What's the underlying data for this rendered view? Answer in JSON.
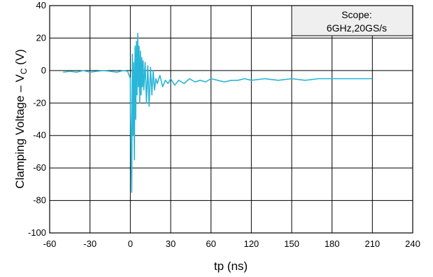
{
  "chart_data": {
    "type": "line",
    "xlabel": "tp (ns)",
    "ylabel": {
      "main": "Clamping Voltage – V",
      "sub": "C",
      "unit": " (V)"
    },
    "x_ticks": [
      "-60",
      "-30",
      "0",
      "30",
      "60",
      "120",
      "150",
      "180",
      "210",
      "240"
    ],
    "y_ticks": [
      40,
      20,
      0,
      -20,
      -40,
      -60,
      -80,
      -100
    ],
    "ylim": [
      -100,
      40
    ],
    "grid": true,
    "annotation": [
      "Scope:",
      "6GHz,20GS/s"
    ],
    "line_color": "#29b6d8",
    "series": [
      {
        "x": [
          -50,
          -45,
          -40,
          -35,
          -30,
          -25,
          -20,
          -15,
          -10,
          -5,
          -2,
          0,
          0.5,
          1,
          1.5,
          2,
          2.5,
          3,
          3.5,
          4,
          4.5,
          5,
          5.5,
          6,
          6.5,
          7,
          7.5,
          8,
          8.5,
          9,
          9.5,
          10,
          11,
          12,
          13,
          14,
          15,
          16,
          17,
          18,
          19,
          20,
          22,
          24,
          26,
          28,
          30,
          33,
          36,
          40,
          44,
          48,
          52,
          56,
          60,
          70,
          80,
          90,
          100,
          110,
          120,
          130,
          140,
          150,
          160,
          170,
          180,
          190,
          200,
          210
        ],
        "y": [
          -1,
          -0.5,
          -1,
          0,
          -1,
          -0.5,
          0,
          -0.5,
          -1,
          0,
          -0.5,
          -5,
          -45,
          -75,
          10,
          -40,
          5,
          -55,
          15,
          -30,
          18,
          -15,
          23,
          -10,
          15,
          -20,
          12,
          -15,
          8,
          -10,
          6,
          -12,
          5,
          -20,
          3,
          -22,
          2,
          -15,
          0,
          -12,
          -5,
          -8,
          -3,
          -10,
          -6,
          -8,
          -5,
          -9,
          -6,
          -8,
          -5,
          -7,
          -6,
          -7,
          -5,
          -6,
          -7,
          -6,
          -6,
          -5,
          -6,
          -5,
          -6,
          -5,
          -6,
          -5,
          -5,
          -5,
          -5,
          -5
        ]
      }
    ]
  }
}
